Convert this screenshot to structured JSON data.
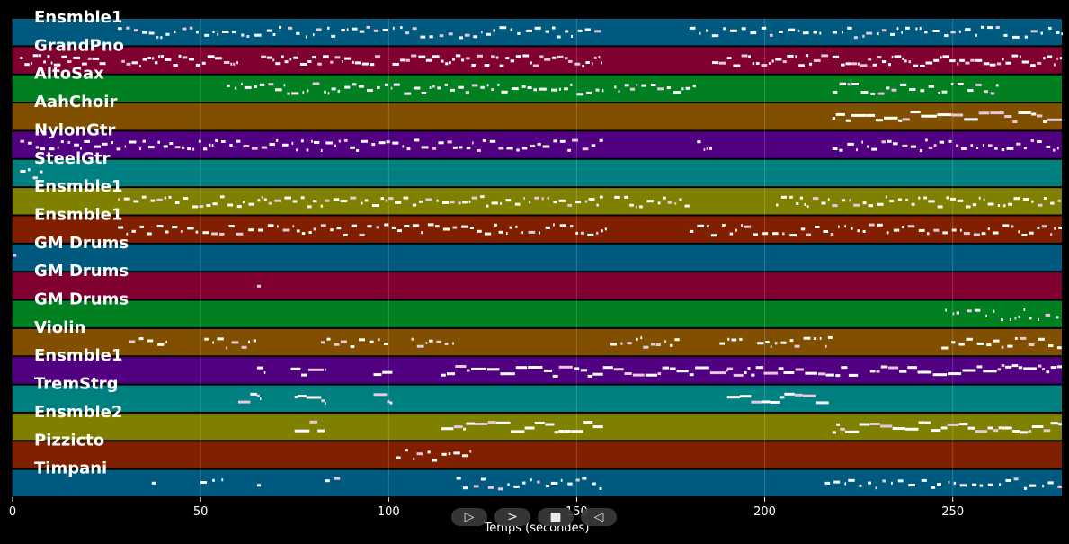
{
  "chart_data": {
    "type": "piano-roll",
    "xlabel": "Temps (secondes)",
    "xlim": [
      0,
      279
    ],
    "xticks": [
      0,
      50,
      100,
      150,
      200,
      250
    ],
    "tracks": [
      {
        "name": "Ensmble1",
        "color": "#005a80",
        "segments": [
          [
            28,
            158
          ],
          [
            180,
            215
          ],
          [
            218,
            279
          ]
        ],
        "density": 0.35
      },
      {
        "name": "GrandPno",
        "color": "#800030",
        "segments": [
          [
            2,
            25
          ],
          [
            29,
            60
          ],
          [
            66,
            98
          ],
          [
            101,
            157
          ],
          [
            186,
            217
          ],
          [
            218,
            279
          ]
        ],
        "density": 0.8
      },
      {
        "name": "AltoSax",
        "color": "#008020",
        "segments": [
          [
            57,
            157
          ],
          [
            160,
            182
          ],
          [
            218,
            263
          ]
        ],
        "density": 0.5
      },
      {
        "name": "AahChoir",
        "color": "#805000",
        "segments": [
          [
            218,
            279
          ]
        ],
        "density": 0.9
      },
      {
        "name": "NylonGtr",
        "color": "#500080",
        "segments": [
          [
            2,
            30
          ],
          [
            31,
            157
          ],
          [
            182,
            186
          ],
          [
            218,
            279
          ]
        ],
        "density": 0.55
      },
      {
        "name": "SteelGtr",
        "color": "#008080",
        "segments": [
          [
            2,
            8
          ]
        ],
        "density": 0.6
      },
      {
        "name": "Ensmble1",
        "color": "#808000",
        "segments": [
          [
            28,
            157
          ],
          [
            160,
            180
          ],
          [
            203,
            279
          ]
        ],
        "density": 0.55
      },
      {
        "name": "Ensmble1",
        "color": "#802000",
        "segments": [
          [
            28,
            158
          ],
          [
            180,
            279
          ]
        ],
        "density": 0.45
      },
      {
        "name": "GM Drums",
        "color": "#005a80",
        "segments": [
          [
            0,
            1
          ]
        ],
        "density": 1.0
      },
      {
        "name": "GM Drums",
        "color": "#800030",
        "segments": [
          [
            65,
            66
          ]
        ],
        "density": 1.0
      },
      {
        "name": "GM Drums",
        "color": "#008020",
        "segments": [
          [
            248,
            279
          ]
        ],
        "density": 0.25
      },
      {
        "name": "Violin",
        "color": "#805000",
        "segments": [
          [
            31,
            41
          ],
          [
            51,
            65
          ],
          [
            82,
            100
          ],
          [
            106,
            118
          ],
          [
            159,
            178
          ],
          [
            188,
            194
          ],
          [
            198,
            218
          ],
          [
            247,
            279
          ]
        ],
        "density": 0.55
      },
      {
        "name": "Ensmble1",
        "color": "#500080",
        "segments": [
          [
            65,
            67
          ],
          [
            74,
            83
          ],
          [
            96,
            101
          ],
          [
            114,
            157
          ],
          [
            157,
            190
          ],
          [
            190,
            205
          ],
          [
            205,
            225
          ],
          [
            228,
            279
          ]
        ],
        "density": 0.85
      },
      {
        "name": "TremStrg",
        "color": "#008080",
        "segments": [
          [
            60,
            66
          ],
          [
            75,
            83
          ],
          [
            96,
            101
          ],
          [
            190,
            217
          ]
        ],
        "density": 1.0
      },
      {
        "name": "Ensmble2",
        "color": "#808000",
        "segments": [
          [
            75,
            83
          ],
          [
            114,
            157
          ],
          [
            218,
            279
          ]
        ],
        "density": 0.95
      },
      {
        "name": "Pizzicto",
        "color": "#802000",
        "segments": [
          [
            102,
            122
          ]
        ],
        "density": 0.5
      },
      {
        "name": "Timpani",
        "color": "#005a80",
        "segments": [
          [
            37,
            38
          ],
          [
            50,
            56
          ],
          [
            65,
            66
          ],
          [
            83,
            88
          ],
          [
            118,
            157
          ],
          [
            216,
            279
          ]
        ],
        "density": 0.3
      }
    ]
  },
  "controls": [
    {
      "icon": "play-outline-icon",
      "glyph": "▷"
    },
    {
      "icon": "forward-icon",
      "glyph": ">"
    },
    {
      "icon": "stop-icon",
      "glyph": "■"
    },
    {
      "icon": "rewind-icon",
      "glyph": "◁"
    }
  ]
}
